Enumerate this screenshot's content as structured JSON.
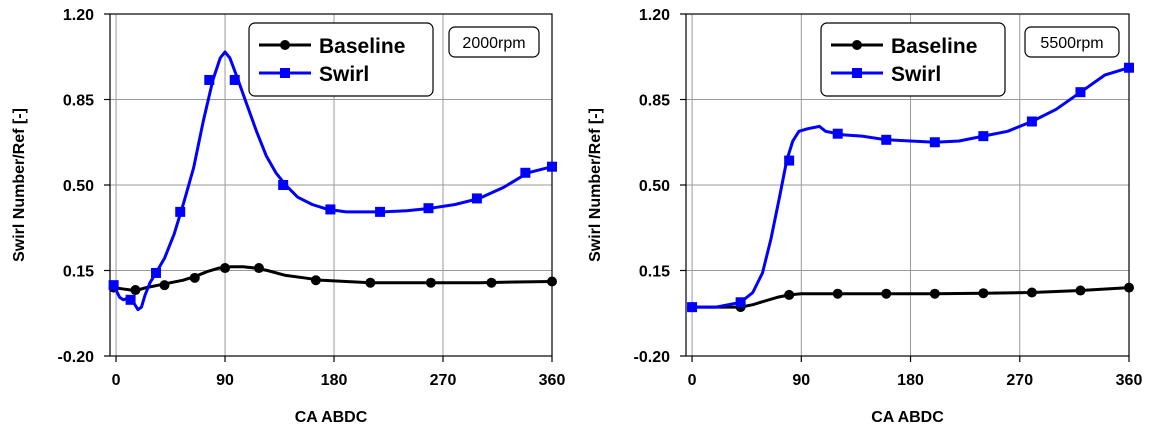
{
  "chart_data": [
    {
      "type": "line",
      "annotation": "2000rpm",
      "xlabel": "CA ABDC",
      "ylabel": "Swirl Number/Ref [-]",
      "xlim": [
        -5,
        360
      ],
      "ylim": [
        -0.2,
        1.2
      ],
      "xticks": [
        0,
        90,
        180,
        270,
        360
      ],
      "yticks": [
        -0.2,
        0.15,
        0.5,
        0.85,
        1.2
      ],
      "ytick_labels": [
        "-0.20",
        "0.15",
        "0.50",
        "0.85",
        "1.20"
      ],
      "grid": true,
      "legend_position": "top-right",
      "series": [
        {
          "name": "Baseline",
          "color": "#000000",
          "marker": "circle",
          "curve": [
            [
              -2,
              0.08
            ],
            [
              5,
              0.075
            ],
            [
              12,
              0.07
            ],
            [
              18,
              0.07
            ],
            [
              25,
              0.08
            ],
            [
              35,
              0.09
            ],
            [
              45,
              0.1
            ],
            [
              55,
              0.11
            ],
            [
              65,
              0.125
            ],
            [
              75,
              0.145
            ],
            [
              85,
              0.16
            ],
            [
              95,
              0.165
            ],
            [
              105,
              0.165
            ],
            [
              115,
              0.16
            ],
            [
              125,
              0.15
            ],
            [
              140,
              0.13
            ],
            [
              155,
              0.12
            ],
            [
              170,
              0.11
            ],
            [
              190,
              0.105
            ],
            [
              210,
              0.1
            ],
            [
              240,
              0.1
            ],
            [
              270,
              0.1
            ],
            [
              300,
              0.1
            ],
            [
              330,
              0.103
            ],
            [
              360,
              0.105
            ]
          ],
          "markers": [
            [
              -2,
              0.08
            ],
            [
              16,
              0.07
            ],
            [
              40,
              0.09
            ],
            [
              65,
              0.12
            ],
            [
              90,
              0.16
            ],
            [
              118,
              0.16
            ],
            [
              165,
              0.11
            ],
            [
              210,
              0.1
            ],
            [
              260,
              0.1
            ],
            [
              310,
              0.1
            ],
            [
              360,
              0.105
            ]
          ]
        },
        {
          "name": "Swirl",
          "color": "#0000ff",
          "marker": "square",
          "curve": [
            [
              -2,
              0.09
            ],
            [
              3,
              0.04
            ],
            [
              6,
              0.03
            ],
            [
              9,
              0.035
            ],
            [
              12,
              0.02
            ],
            [
              15,
              0.015
            ],
            [
              18,
              -0.01
            ],
            [
              21,
              0.0
            ],
            [
              24,
              0.05
            ],
            [
              28,
              0.1
            ],
            [
              33,
              0.14
            ],
            [
              40,
              0.2
            ],
            [
              48,
              0.3
            ],
            [
              56,
              0.43
            ],
            [
              64,
              0.57
            ],
            [
              72,
              0.76
            ],
            [
              80,
              0.93
            ],
            [
              86,
              1.02
            ],
            [
              90,
              1.045
            ],
            [
              94,
              1.02
            ],
            [
              100,
              0.94
            ],
            [
              108,
              0.83
            ],
            [
              116,
              0.72
            ],
            [
              124,
              0.62
            ],
            [
              132,
              0.55
            ],
            [
              140,
              0.5
            ],
            [
              150,
              0.45
            ],
            [
              162,
              0.42
            ],
            [
              175,
              0.4
            ],
            [
              190,
              0.39
            ],
            [
              205,
              0.39
            ],
            [
              220,
              0.39
            ],
            [
              240,
              0.395
            ],
            [
              260,
              0.405
            ],
            [
              280,
              0.42
            ],
            [
              300,
              0.445
            ],
            [
              320,
              0.49
            ],
            [
              340,
              0.55
            ],
            [
              360,
              0.575
            ]
          ],
          "markers": [
            [
              -2,
              0.09
            ],
            [
              12,
              0.03
            ],
            [
              33,
              0.14
            ],
            [
              53,
              0.39
            ],
            [
              77,
              0.93
            ],
            [
              98,
              0.93
            ],
            [
              138,
              0.5
            ],
            [
              177,
              0.4
            ],
            [
              218,
              0.39
            ],
            [
              258,
              0.405
            ],
            [
              298,
              0.445
            ],
            [
              338,
              0.55
            ],
            [
              360,
              0.575
            ]
          ]
        }
      ]
    },
    {
      "type": "line",
      "annotation": "5500rpm",
      "xlabel": "CA ABDC",
      "ylabel": "Swirl Number/Ref [-]",
      "xlim": [
        -5,
        360
      ],
      "ylim": [
        -0.2,
        1.2
      ],
      "xticks": [
        0,
        90,
        180,
        270,
        360
      ],
      "yticks": [
        -0.2,
        0.15,
        0.5,
        0.85,
        1.2
      ],
      "ytick_labels": [
        "-0.20",
        "0.15",
        "0.50",
        "0.85",
        "1.20"
      ],
      "grid": true,
      "legend_position": "top-right",
      "series": [
        {
          "name": "Baseline",
          "color": "#000000",
          "marker": "circle",
          "curve": [
            [
              0,
              0.0
            ],
            [
              20,
              0.0
            ],
            [
              40,
              0.0
            ],
            [
              50,
              0.01
            ],
            [
              60,
              0.025
            ],
            [
              70,
              0.04
            ],
            [
              80,
              0.05
            ],
            [
              90,
              0.055
            ],
            [
              100,
              0.055
            ],
            [
              120,
              0.055
            ],
            [
              160,
              0.055
            ],
            [
              200,
              0.055
            ],
            [
              240,
              0.057
            ],
            [
              280,
              0.06
            ],
            [
              320,
              0.068
            ],
            [
              360,
              0.08
            ]
          ],
          "markers": [
            [
              0,
              0.0
            ],
            [
              40,
              0.0
            ],
            [
              80,
              0.05
            ],
            [
              120,
              0.055
            ],
            [
              160,
              0.055
            ],
            [
              200,
              0.055
            ],
            [
              240,
              0.057
            ],
            [
              280,
              0.06
            ],
            [
              320,
              0.068
            ],
            [
              360,
              0.08
            ]
          ]
        },
        {
          "name": "Swirl",
          "color": "#0000ff",
          "marker": "square",
          "curve": [
            [
              0,
              0.0
            ],
            [
              20,
              0.0
            ],
            [
              40,
              0.02
            ],
            [
              50,
              0.06
            ],
            [
              58,
              0.14
            ],
            [
              65,
              0.28
            ],
            [
              72,
              0.45
            ],
            [
              78,
              0.6
            ],
            [
              83,
              0.68
            ],
            [
              88,
              0.72
            ],
            [
              95,
              0.73
            ],
            [
              105,
              0.74
            ],
            [
              110,
              0.72
            ],
            [
              115,
              0.715
            ],
            [
              125,
              0.705
            ],
            [
              140,
              0.7
            ],
            [
              160,
              0.685
            ],
            [
              180,
              0.68
            ],
            [
              200,
              0.675
            ],
            [
              220,
              0.68
            ],
            [
              240,
              0.7
            ],
            [
              260,
              0.72
            ],
            [
              280,
              0.76
            ],
            [
              300,
              0.81
            ],
            [
              320,
              0.88
            ],
            [
              340,
              0.95
            ],
            [
              360,
              0.98
            ]
          ],
          "markers": [
            [
              0,
              0.0
            ],
            [
              40,
              0.02
            ],
            [
              80,
              0.6
            ],
            [
              120,
              0.71
            ],
            [
              160,
              0.685
            ],
            [
              200,
              0.675
            ],
            [
              240,
              0.7
            ],
            [
              280,
              0.76
            ],
            [
              320,
              0.88
            ],
            [
              360,
              0.98
            ]
          ]
        }
      ]
    }
  ]
}
